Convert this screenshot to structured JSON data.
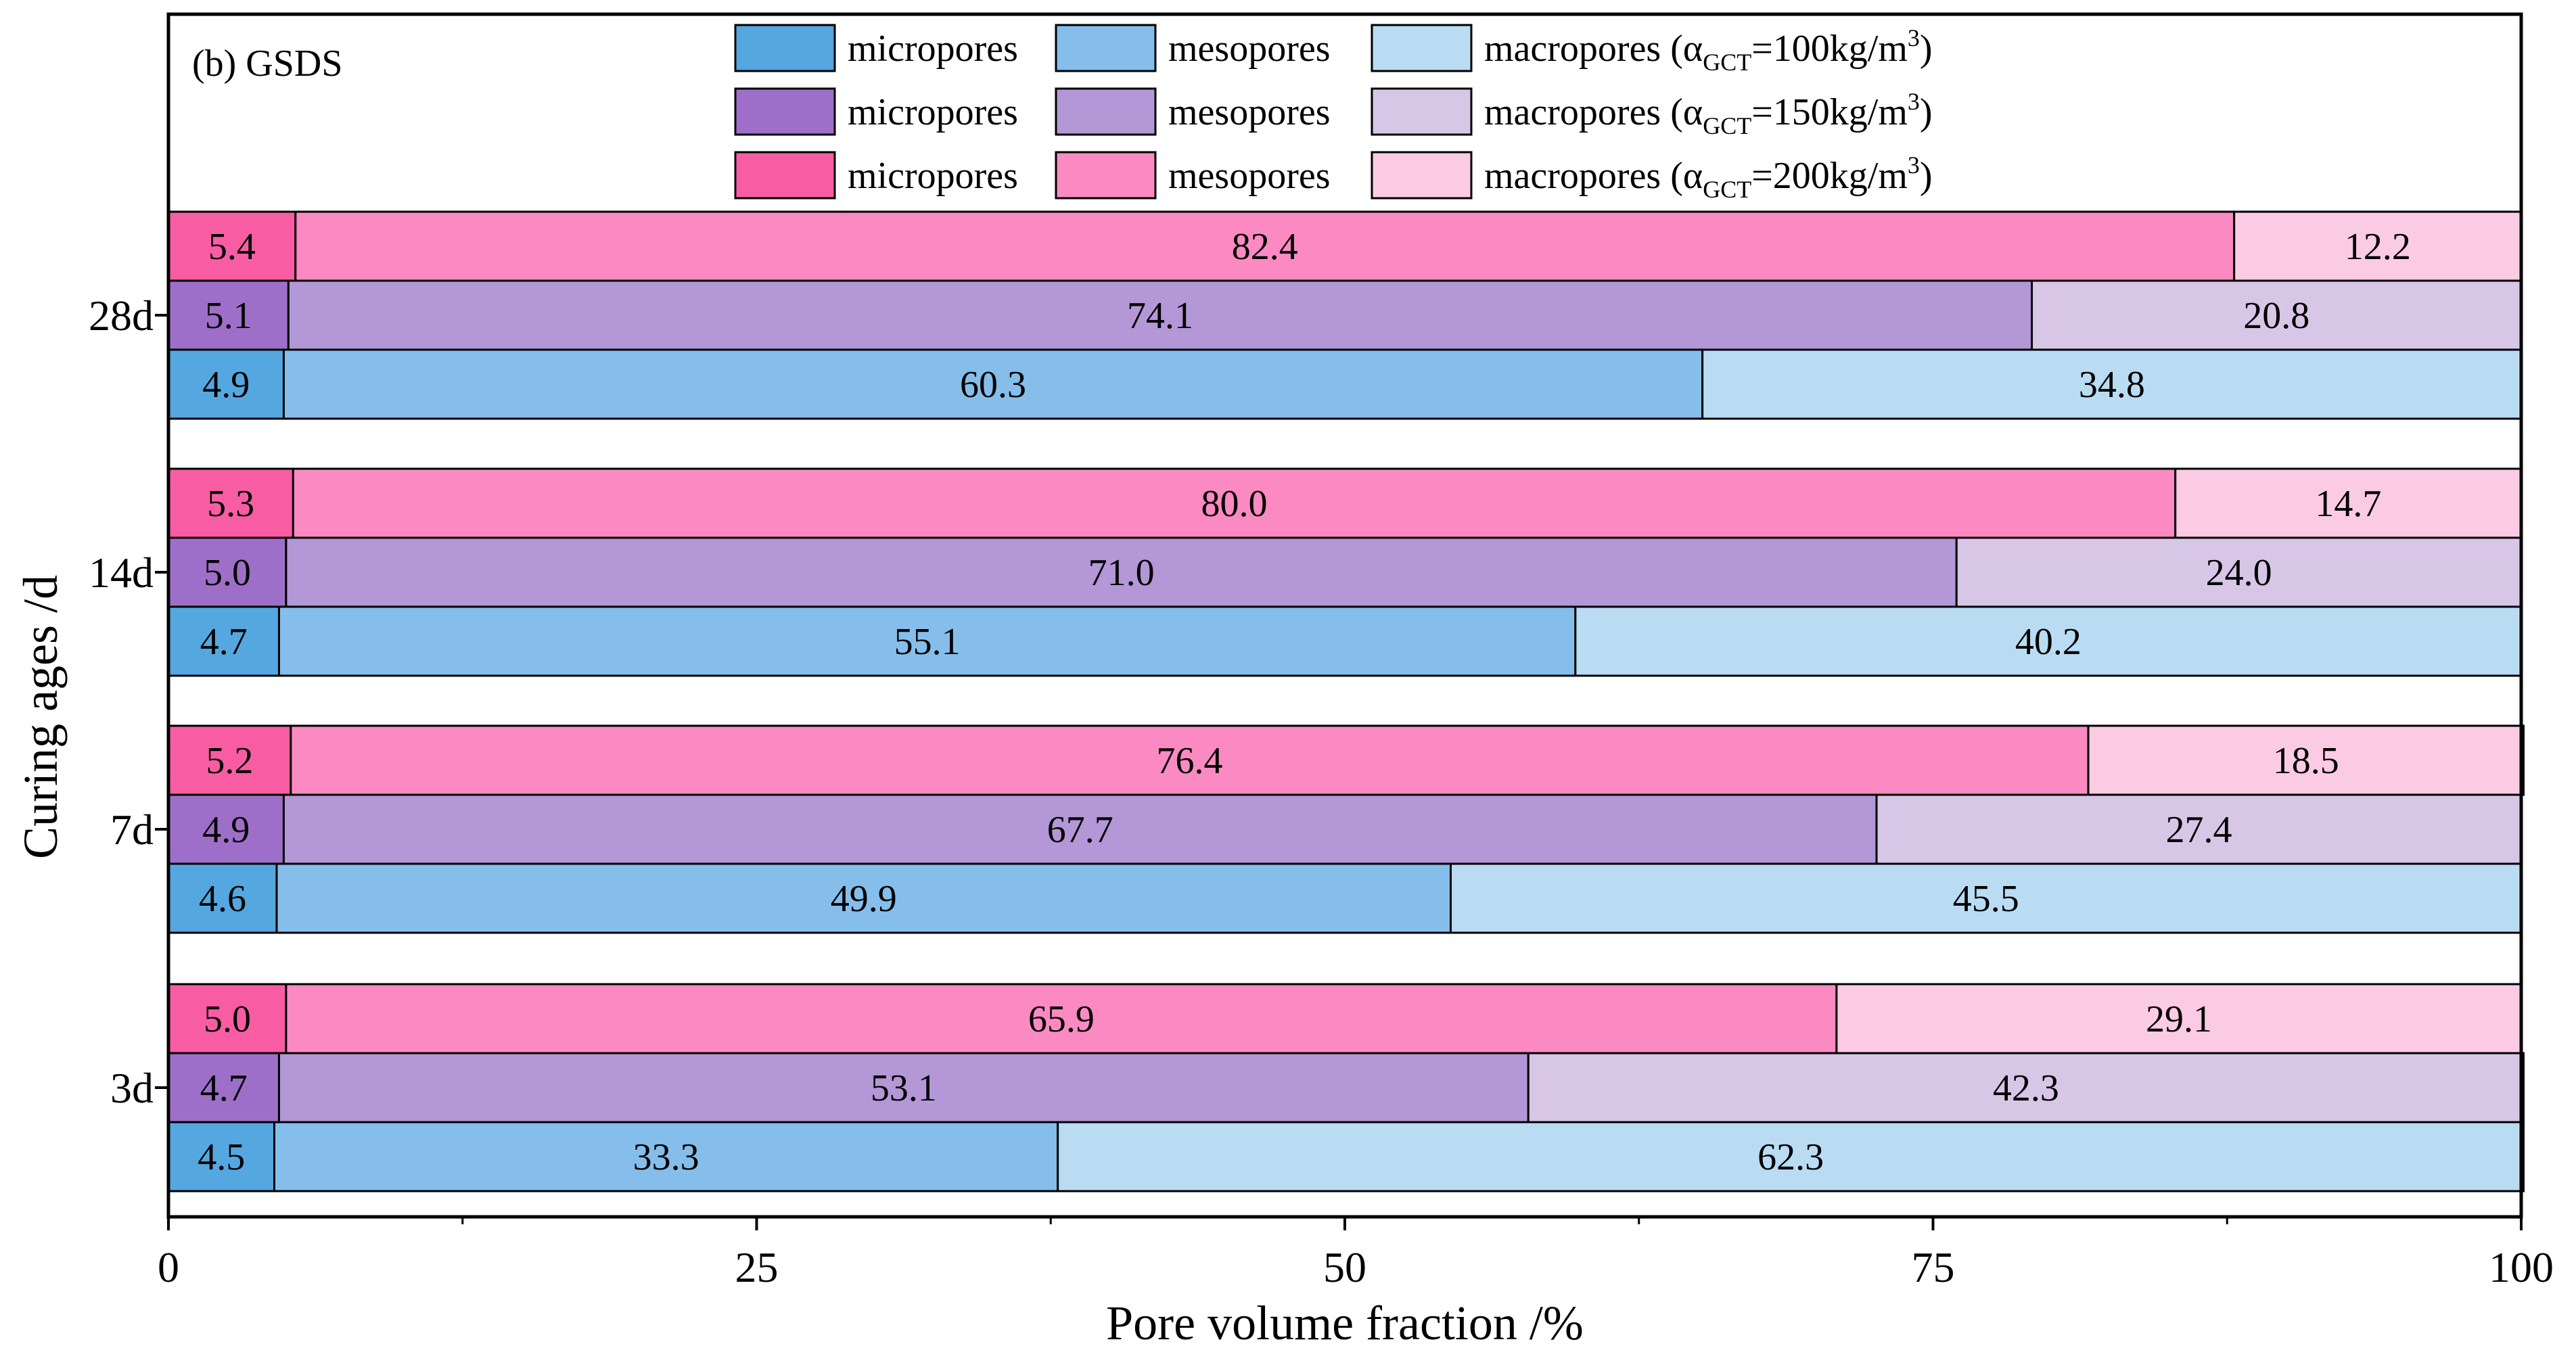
{
  "chart_data": {
    "type": "bar",
    "orientation": "horizontal",
    "stacked": true,
    "panel_label": "(b) GSDS",
    "xlabel": "Pore volume fraction /%",
    "ylabel": "Curing ages /d",
    "xlim": [
      0,
      100
    ],
    "xticks": [
      "0",
      "25",
      "50",
      "75",
      "100"
    ],
    "categories": [
      "28d",
      "14d",
      "7d",
      "3d"
    ],
    "components": [
      "micropores",
      "mesopores",
      "macropores"
    ],
    "groups": [
      {
        "key": "100",
        "legend_prefix": "macropores (α",
        "legend_sub": "GCT",
        "legend_mid": "=100kg/m",
        "legend_sup": "3",
        "legend_suffix": ")",
        "colors": [
          "#55A7E0",
          "#85BEEA",
          "#B9DCF3"
        ],
        "values": {
          "28d": [
            4.9,
            60.3,
            34.8
          ],
          "14d": [
            4.7,
            55.1,
            40.2
          ],
          "7d": [
            4.6,
            49.9,
            45.5
          ],
          "3d": [
            4.5,
            33.3,
            62.3
          ]
        }
      },
      {
        "key": "150",
        "legend_prefix": "macropores (α",
        "legend_sub": "GCT",
        "legend_mid": "=150kg/m",
        "legend_sup": "3",
        "legend_suffix": ")",
        "colors": [
          "#9E6FC8",
          "#B497D7",
          "#D8C6E7"
        ],
        "values": {
          "28d": [
            5.1,
            74.1,
            20.8
          ],
          "14d": [
            5.0,
            71.0,
            24.0
          ],
          "7d": [
            4.9,
            67.7,
            27.4
          ],
          "3d": [
            4.7,
            53.1,
            42.3
          ]
        }
      },
      {
        "key": "200",
        "legend_prefix": "macropores (α",
        "legend_sub": "GCT",
        "legend_mid": "=200kg/m",
        "legend_sup": "3",
        "legend_suffix": ")",
        "colors": [
          "#F85DA4",
          "#FB8AC2",
          "#FBCBE3"
        ],
        "values": {
          "28d": [
            5.4,
            82.4,
            12.2
          ],
          "14d": [
            5.3,
            80.0,
            14.7
          ],
          "7d": [
            5.2,
            76.4,
            18.5
          ],
          "3d": [
            5.0,
            65.9,
            29.1
          ]
        }
      }
    ]
  }
}
